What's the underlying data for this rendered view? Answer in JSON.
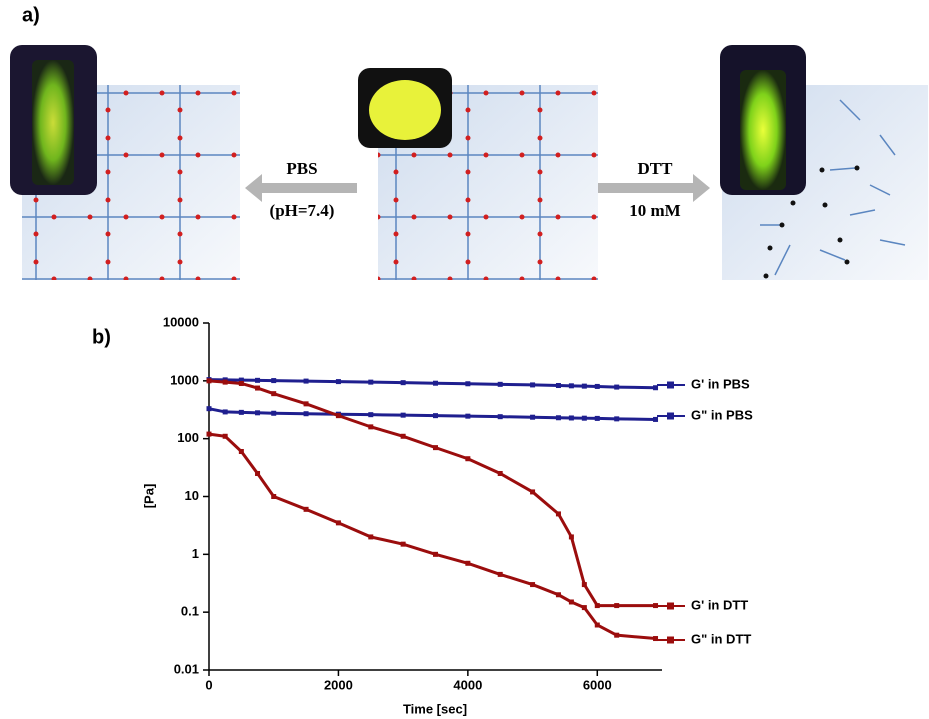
{
  "figure": {
    "panel_a": {
      "label": "a)",
      "arrows": [
        {
          "top": "PBS",
          "bottom": "(pH=7.4)"
        },
        {
          "top": "DTT",
          "bottom": "10 mM"
        }
      ]
    },
    "panel_b": {
      "label": "b)"
    }
  },
  "chart_data": {
    "type": "line",
    "x_label": "Time [sec]",
    "y_label": "[Pa]",
    "log_y": true,
    "xlim": [
      0,
      7000
    ],
    "xticks": [
      0,
      2000,
      4000,
      6000
    ],
    "ylim": [
      0.01,
      10000
    ],
    "yticks": [
      0.01,
      0.1,
      1,
      10,
      100,
      1000,
      10000
    ],
    "x": [
      0,
      250,
      500,
      750,
      1000,
      1500,
      2000,
      2500,
      3000,
      3500,
      4000,
      4500,
      5000,
      5400,
      5600,
      5800,
      6000,
      6300,
      6900
    ],
    "series": [
      {
        "name": "G' in  PBS",
        "color": "#1f1f8f",
        "values": [
          1050,
          1040,
          1030,
          1020,
          1010,
          990,
          970,
          950,
          930,
          910,
          890,
          870,
          850,
          830,
          820,
          810,
          800,
          780,
          760
        ]
      },
      {
        "name": "G\" in PBS",
        "color": "#1f1f8f",
        "values": [
          330,
          290,
          285,
          280,
          275,
          270,
          265,
          260,
          255,
          250,
          245,
          240,
          235,
          230,
          228,
          226,
          224,
          220,
          215
        ]
      },
      {
        "name": "G' in  DTT",
        "color": "#9b0d0d",
        "values": [
          1000,
          950,
          900,
          750,
          600,
          400,
          250,
          160,
          110,
          70,
          45,
          25,
          12,
          5,
          2,
          0.3,
          0.13,
          0.13,
          0.13
        ]
      },
      {
        "name": "G\" in DTT",
        "color": "#9b0d0d",
        "values": [
          120,
          110,
          60,
          25,
          10,
          6,
          3.5,
          2,
          1.5,
          1,
          0.7,
          0.45,
          0.3,
          0.2,
          0.15,
          0.12,
          0.06,
          0.04,
          0.035
        ]
      }
    ]
  }
}
